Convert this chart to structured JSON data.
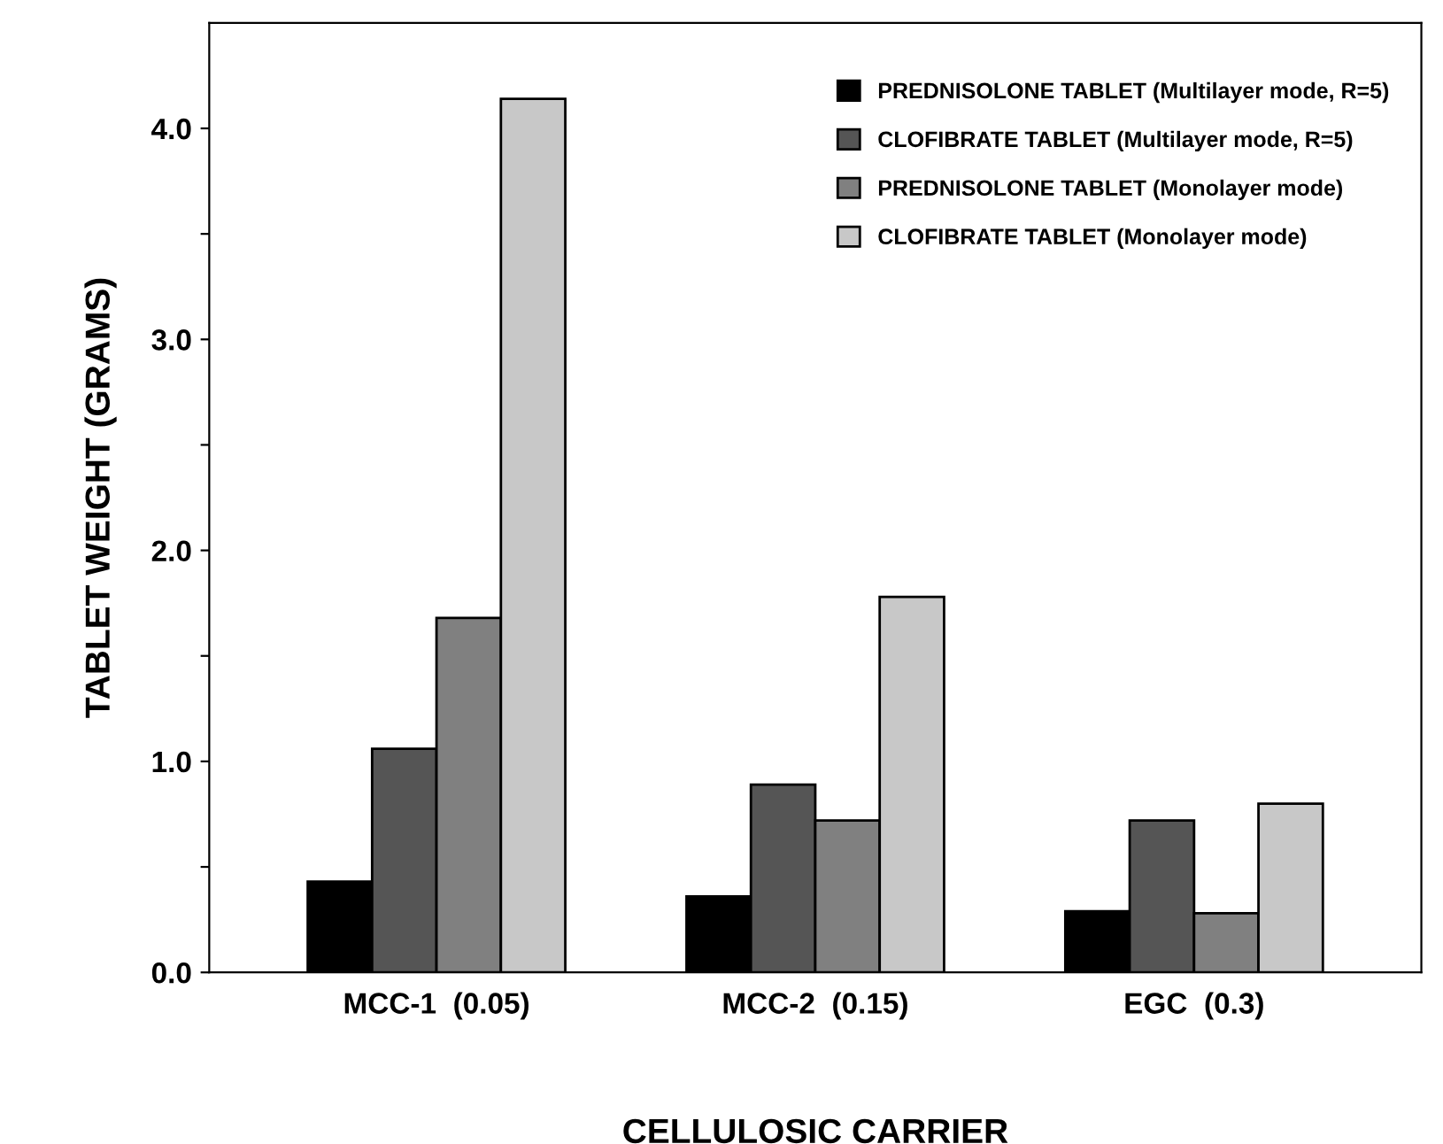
{
  "chart_data": {
    "type": "bar",
    "xlabel": "CELLULOSIC CARRIER",
    "ylabel": "TABLET WEIGHT (GRAMS)",
    "categories": [
      "MCC-1  (0.05)",
      "MCC-2  (0.15)",
      "EGC  (0.3)"
    ],
    "series": [
      {
        "name": "PREDNISOLONE TABLET (Multilayer mode, R=5)",
        "color": "#000000",
        "values": [
          0.43,
          0.36,
          0.29
        ]
      },
      {
        "name": "CLOFIBRATE TABLET (Multilayer mode, R=5)",
        "color": "#555555",
        "values": [
          1.06,
          0.89,
          0.72
        ]
      },
      {
        "name": "PREDNISOLONE TABLET (Monolayer mode)",
        "color": "#808080",
        "values": [
          1.68,
          0.72,
          0.28
        ]
      },
      {
        "name": "CLOFIBRATE TABLET (Monolayer mode)",
        "color": "#c8c8c8",
        "values": [
          4.14,
          1.78,
          0.8
        ]
      }
    ],
    "ylim": [
      0,
      4.5
    ],
    "yticks": [
      {
        "value": 0,
        "label": "0.0"
      },
      {
        "value": 0.5,
        "label": null
      },
      {
        "value": 1,
        "label": "1.0"
      },
      {
        "value": 1.5,
        "label": null
      },
      {
        "value": 2,
        "label": "2.0"
      },
      {
        "value": 2.5,
        "label": null
      },
      {
        "value": 3,
        "label": "3.0"
      },
      {
        "value": 3.5,
        "label": null
      },
      {
        "value": 4,
        "label": "4.0"
      }
    ],
    "legend": "top right",
    "grid": false
  }
}
